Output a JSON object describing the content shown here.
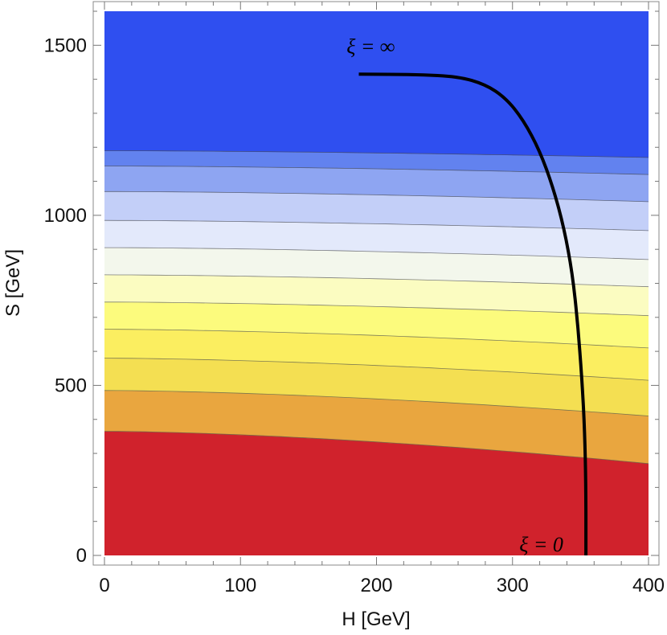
{
  "chart_data": {
    "type": "contour",
    "xlabel": "H  [GeV]",
    "ylabel": "S  [GeV]",
    "xlim": [
      0,
      400
    ],
    "ylim": [
      0,
      1600
    ],
    "xticks": [
      "0",
      "100",
      "200",
      "300",
      "400"
    ],
    "yticks": [
      "0",
      "500",
      "1000",
      "1500"
    ],
    "x_tick_values": [
      0,
      100,
      200,
      300,
      400
    ],
    "y_tick_values": [
      0,
      500,
      1000,
      1500
    ],
    "contour_bands": [
      {
        "s_at_h0": 0,
        "s_at_h400": 0,
        "color": "#d0222c"
      },
      {
        "s_at_h0": 365,
        "s_at_h400": 270,
        "color": "#e9a63f"
      },
      {
        "s_at_h0": 485,
        "s_at_h400": 410,
        "color": "#f4df52"
      },
      {
        "s_at_h0": 580,
        "s_at_h400": 515,
        "color": "#fbee60"
      },
      {
        "s_at_h0": 665,
        "s_at_h400": 610,
        "color": "#fcfb7d"
      },
      {
        "s_at_h0": 745,
        "s_at_h400": 705,
        "color": "#fbfcc1"
      },
      {
        "s_at_h0": 825,
        "s_at_h400": 790,
        "color": "#f3f7ec"
      },
      {
        "s_at_h0": 905,
        "s_at_h400": 870,
        "color": "#e3e9fb"
      },
      {
        "s_at_h0": 985,
        "s_at_h400": 955,
        "color": "#c3cff8"
      },
      {
        "s_at_h0": 1070,
        "s_at_h400": 1040,
        "color": "#8ea5f2"
      },
      {
        "s_at_h0": 1145,
        "s_at_h400": 1120,
        "color": "#6282ef"
      },
      {
        "s_at_h0": 1190,
        "s_at_h400": 1170,
        "color": "#2f4ff0"
      }
    ],
    "curve": {
      "color": "#000000",
      "points": [
        [
          187,
          1415
        ],
        [
          230,
          1414
        ],
        [
          260,
          1408
        ],
        [
          280,
          1385
        ],
        [
          295,
          1345
        ],
        [
          308,
          1280
        ],
        [
          320,
          1190
        ],
        [
          330,
          1080
        ],
        [
          338,
          960
        ],
        [
          344,
          830
        ],
        [
          348,
          680
        ],
        [
          351,
          520
        ],
        [
          353,
          370
        ],
        [
          354,
          200
        ],
        [
          354,
          0
        ]
      ]
    },
    "annotations": [
      {
        "text": "ξ = ∞",
        "x": 178,
        "y": 1500
      },
      {
        "text": "ξ = 0",
        "x": 305,
        "y": 35
      }
    ]
  }
}
